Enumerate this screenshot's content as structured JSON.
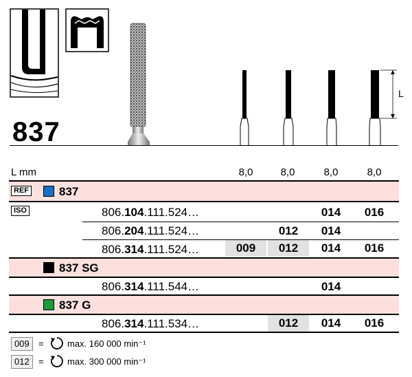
{
  "product": {
    "title": "837"
  },
  "diagram": {
    "length_label": "L"
  },
  "header": {
    "lmm_label": "L mm",
    "sizes": [
      "8,0",
      "8,0",
      "8,0",
      "8,0"
    ]
  },
  "groups": [
    {
      "tag": "REF",
      "color": "#1a6fc4",
      "name": "837",
      "iso_tag": "ISO",
      "rows": [
        {
          "prefix": "806.",
          "bold": "104",
          "suffix": ".111.524…",
          "cells": [
            "",
            "",
            "014",
            "016"
          ],
          "highlight": []
        },
        {
          "prefix": "806.",
          "bold": "204",
          "suffix": ".111.524…",
          "cells": [
            "",
            "012",
            "014",
            ""
          ],
          "highlight": []
        },
        {
          "prefix": "806.",
          "bold": "314",
          "suffix": ".111.524…",
          "cells": [
            "009",
            "012",
            "014",
            "016"
          ],
          "highlight": [
            0,
            1
          ]
        }
      ]
    },
    {
      "tag": "",
      "color": "#000000",
      "name": "837 SG",
      "rows": [
        {
          "prefix": "806.",
          "bold": "314",
          "suffix": ".111.544…",
          "cells": [
            "",
            "",
            "014",
            ""
          ],
          "highlight": []
        }
      ]
    },
    {
      "tag": "",
      "color": "#1e9a3a",
      "name": "837 G",
      "rows": [
        {
          "prefix": "806.",
          "bold": "314",
          "suffix": ".111.534…",
          "cells": [
            "",
            "012",
            "014",
            "016"
          ],
          "highlight": [
            1
          ]
        }
      ]
    }
  ],
  "legend": [
    {
      "code": "009",
      "eq": "=",
      "text": "max. 160 000 min⁻¹"
    },
    {
      "code": "012",
      "eq": "=",
      "text": "max. 300 000 min⁻¹"
    }
  ]
}
